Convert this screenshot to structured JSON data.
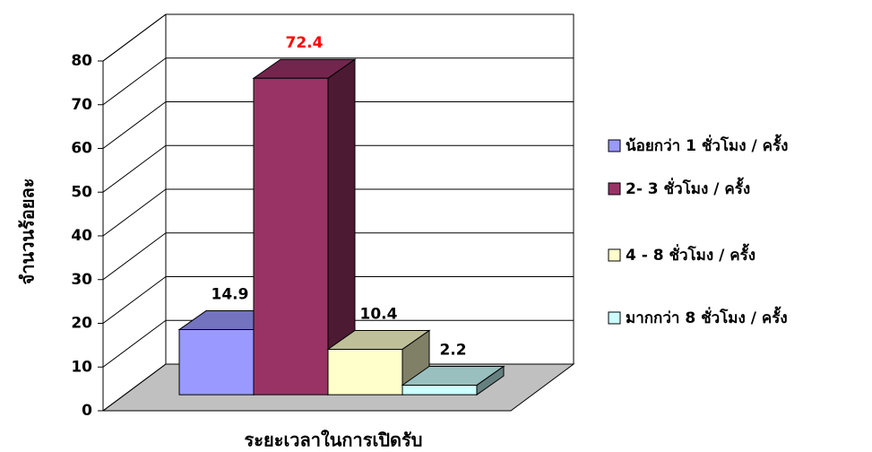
{
  "chart_data": {
    "type": "bar3d",
    "x_label": "ระยะเวลาในการเปิดรับ",
    "y_label": "จำนวนร้อยละ",
    "categories": [
      null
    ],
    "series": [
      {
        "name": "น้อยกว่า 1 ชั่วโมง / ครั้ง",
        "color": "#9999ff",
        "label_color": "#000000",
        "values": [
          14.9
        ]
      },
      {
        "name": "2- 3 ชั่วโมง / ครั้ง",
        "color": "#993366",
        "label_color": "#ff0000",
        "values": [
          72.4
        ]
      },
      {
        "name": "4 - 8 ชั่วโมง / ครั้ง",
        "color": "#ffffcc",
        "label_color": "#000000",
        "values": [
          10.4
        ]
      },
      {
        "name": "มากกว่า 8 ชั่วโมง / ครั้ง",
        "color": "#ccffff",
        "label_color": "#000000",
        "values": [
          2.2
        ]
      }
    ],
    "ylim": [
      0,
      80
    ],
    "yticks": [
      0,
      10,
      20,
      30,
      40,
      50,
      60,
      70,
      80
    ],
    "grid": true,
    "legend": "right"
  }
}
